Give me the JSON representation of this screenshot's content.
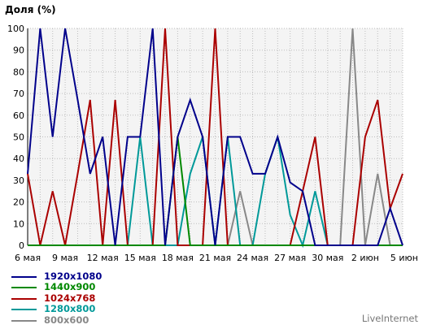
{
  "chart_data": {
    "type": "line",
    "ylabel": "Доля (%)",
    "ylim": [
      0,
      100
    ],
    "y_ticks": [
      0,
      10,
      20,
      30,
      40,
      50,
      60,
      70,
      80,
      90,
      100
    ],
    "x": [
      "6 мая",
      "7 мая",
      "8 мая",
      "9 мая",
      "10 мая",
      "11 мая",
      "12 мая",
      "13 мая",
      "14 мая",
      "15 мая",
      "16 мая",
      "17 мая",
      "18 мая",
      "19 мая",
      "20 мая",
      "21 мая",
      "22 мая",
      "23 мая",
      "24 мая",
      "25 мая",
      "26 мая",
      "27 мая",
      "28 мая",
      "29 мая",
      "30 мая",
      "31 мая",
      "1 июн",
      "2 июн",
      "3 июн",
      "4 июн",
      "5 июн"
    ],
    "x_tick_labels": [
      "6 мая",
      "9 мая",
      "12 мая",
      "15 мая",
      "18 мая",
      "21 мая",
      "24 мая",
      "27 мая",
      "30 мая",
      "2 июн",
      "5 июн"
    ],
    "grid": true,
    "series": [
      {
        "name": "1920x1080",
        "color": "#00008b",
        "values": [
          33,
          100,
          50,
          100,
          67,
          33,
          50,
          0,
          50,
          50,
          100,
          0,
          50,
          67,
          50,
          0,
          50,
          50,
          33,
          33,
          50,
          29,
          25,
          0,
          0,
          0,
          0,
          0,
          0,
          17,
          0
        ]
      },
      {
        "name": "1440x900",
        "color": "#008800",
        "values": [
          0,
          0,
          0,
          0,
          0,
          0,
          0,
          0,
          0,
          0,
          0,
          0,
          50,
          0,
          0,
          0,
          0,
          0,
          0,
          0,
          0,
          0,
          0,
          0,
          0,
          0,
          0,
          0,
          0,
          0,
          0
        ]
      },
      {
        "name": "1024x768",
        "color": "#aa0000",
        "values": [
          33,
          0,
          25,
          0,
          33,
          67,
          0,
          67,
          0,
          0,
          0,
          100,
          0,
          0,
          0,
          100,
          0,
          0,
          0,
          0,
          0,
          0,
          25,
          50,
          0,
          0,
          0,
          50,
          67,
          17,
          33
        ]
      },
      {
        "name": "1280x800",
        "color": "#009999",
        "values": [
          0,
          0,
          0,
          0,
          0,
          0,
          0,
          0,
          0,
          50,
          0,
          0,
          0,
          33,
          50,
          0,
          50,
          0,
          0,
          33,
          50,
          14,
          0,
          25,
          0,
          0,
          0,
          0,
          0,
          0,
          0
        ]
      },
      {
        "name": "800x600",
        "color": "#888888",
        "values": [
          0,
          0,
          0,
          0,
          0,
          0,
          0,
          0,
          0,
          0,
          0,
          0,
          0,
          0,
          0,
          0,
          0,
          25,
          0,
          0,
          0,
          0,
          0,
          0,
          0,
          0,
          100,
          0,
          33,
          0,
          0
        ]
      }
    ]
  },
  "credit": "LiveInternet"
}
